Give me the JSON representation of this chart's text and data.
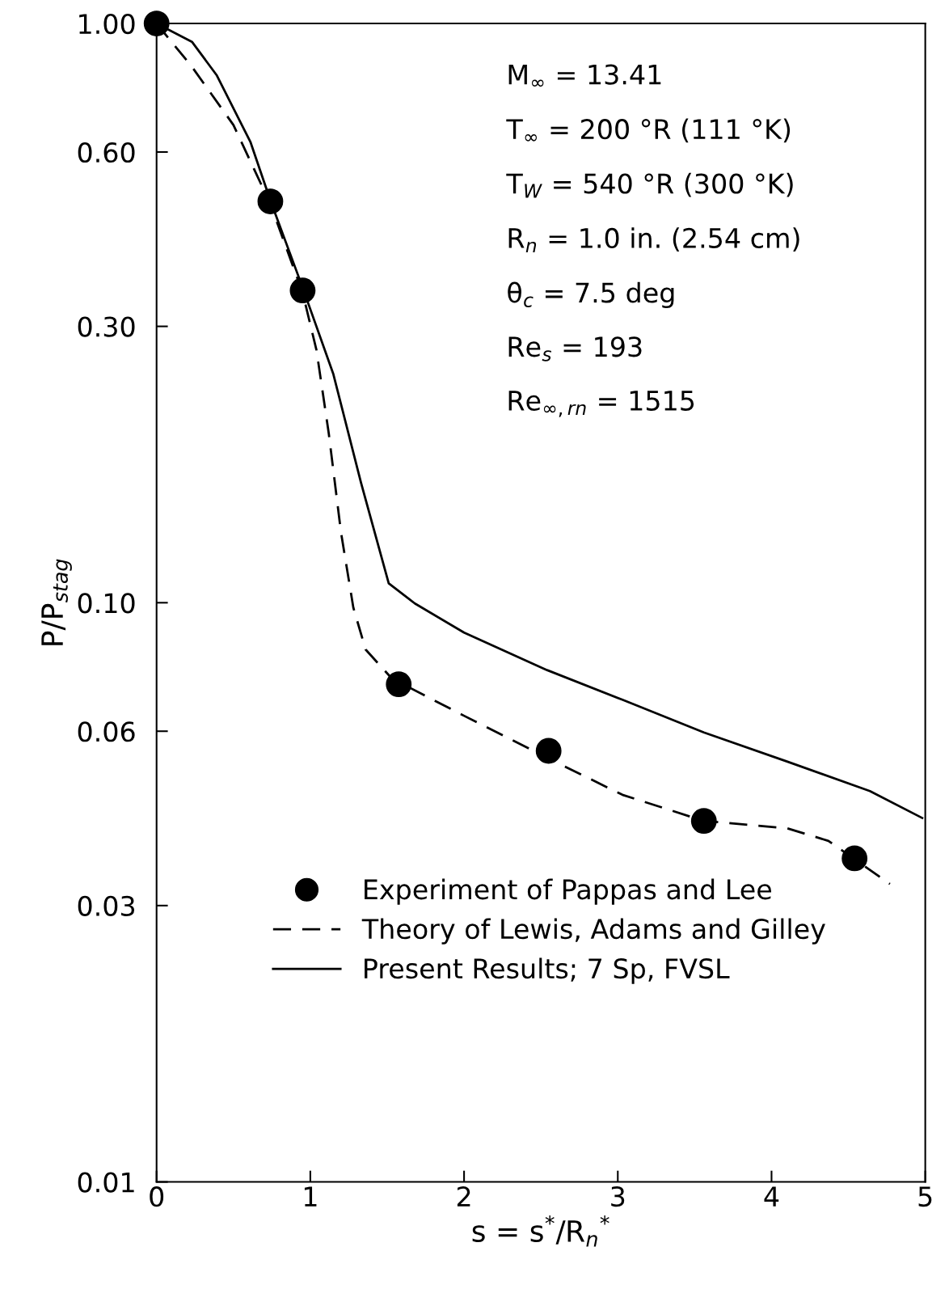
{
  "chart_data": {
    "type": "line",
    "xlabel": "s = s$^{*}$/R$_{n}$$^{*}$",
    "ylabel": "P/P$_{stag}$",
    "log": "y",
    "xlim": [
      0,
      5
    ],
    "ylim": [
      0.01,
      1.0
    ],
    "xticks": [
      0,
      1,
      2,
      3,
      4,
      5
    ],
    "yticks": [
      {
        "value": 1.0,
        "label": "1.00"
      },
      {
        "value": 0.6,
        "label": "0.60"
      },
      {
        "value": 0.3,
        "label": "0.30"
      },
      {
        "value": 0.1,
        "label": "0.10"
      },
      {
        "value": 0.06,
        "label": "0.06"
      },
      {
        "value": 0.03,
        "label": "0.03"
      },
      {
        "value": 0.01,
        "label": "0.01"
      }
    ],
    "grid": false,
    "legend": "bottom left",
    "annotations": [
      "M$_{∞}$ = 13.41",
      "T$_{∞}$ = 200 °R (111 °K)",
      "T$_{W}$ = 540 °R (300 °K)",
      "R$_{n}$ = 1.0 in. (2.54 cm)",
      "θ$_{c}$ = 7.5 deg",
      "Re$_{s}$ = 193",
      "Re$_{∞,rn}$ = 1515"
    ],
    "series": [
      {
        "name": "Experiment of Pappas and Lee",
        "type": "scatter",
        "marker": "circle",
        "color": "#000000",
        "x": [
          0,
          0.74,
          0.95,
          1.575,
          2.55,
          3.56,
          4.54
        ],
        "values": [
          1.0,
          0.493,
          0.346,
          0.0723,
          0.0555,
          0.042,
          0.0362
        ]
      },
      {
        "name": "Theory of Lewis, Adams and Gilley",
        "line_style": "dashed",
        "color": "#000000",
        "x": [
          0,
          0.23,
          0.5,
          0.74,
          0.95,
          1.04,
          1.12,
          1.2,
          1.28,
          1.36,
          1.53,
          2.0,
          2.54,
          3.03,
          3.56,
          4.1,
          4.37,
          4.77
        ],
        "values": [
          1.0,
          0.842,
          0.668,
          0.488,
          0.343,
          0.273,
          0.196,
          0.132,
          0.098,
          0.083,
          0.074,
          0.0638,
          0.054,
          0.0466,
          0.042,
          0.0408,
          0.0388,
          0.0327
        ]
      },
      {
        "name": "Present Results; 7 Sp, FVSL",
        "line_style": "solid",
        "color": "#000000",
        "x": [
          0,
          0.23,
          0.39,
          0.61,
          0.74,
          0.95,
          1.15,
          1.33,
          1.51,
          1.68,
          2.0,
          2.54,
          3.03,
          3.56,
          4.1,
          4.64,
          4.98
        ],
        "values": [
          1.0,
          0.93,
          0.815,
          0.625,
          0.495,
          0.35,
          0.248,
          0.161,
          0.108,
          0.0997,
          0.0888,
          0.0765,
          0.068,
          0.0597,
          0.0532,
          0.0473,
          0.0425
        ]
      }
    ]
  }
}
